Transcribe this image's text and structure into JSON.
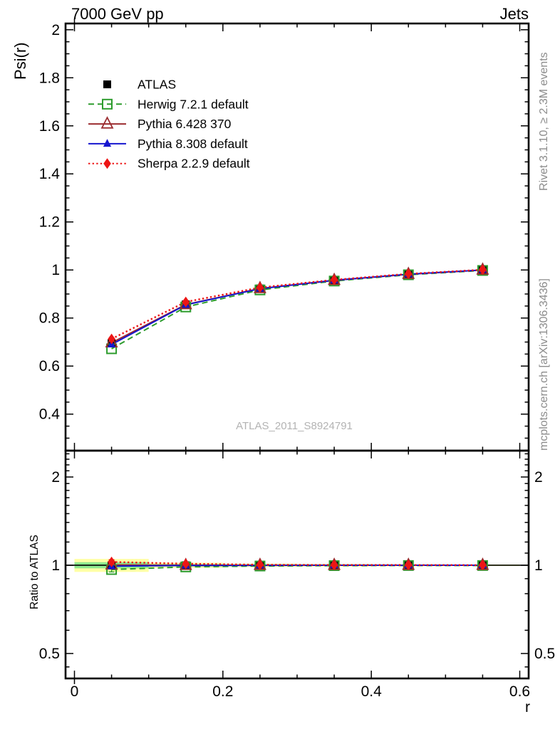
{
  "header": {
    "title_left": "7000 GeV pp",
    "title_right": "Jets"
  },
  "axis_labels": {
    "y_main": "Psi(r)",
    "y_ratio": "Ratio to ATLAS",
    "x": "r"
  },
  "side_notes": {
    "rivet": "Rivet 3.1.10, ≥ 2.3M events",
    "mcplots": "mcplots.cern.ch [arXiv:1306.3436]"
  },
  "watermark": "ATLAS_2011_S8924791",
  "chart_data": {
    "type": "line",
    "title": "7000 GeV pp",
    "corner_label": "Jets",
    "xlabel": "r",
    "ylabel": "Psi(r)",
    "ratio_label": "Ratio to ATLAS",
    "x": [
      0.05,
      0.15,
      0.25,
      0.35,
      0.45,
      0.55
    ],
    "xlim": [
      -0.012,
      0.612
    ],
    "ylim_main": [
      0.248,
      2.026
    ],
    "ylim_ratio": [
      0.411,
      2.46
    ],
    "ratio_scale": "log",
    "grid": false,
    "legend_position": "top-left",
    "x_ticks": {
      "major": [
        0,
        0.2,
        0.4,
        0.6
      ],
      "labels": [
        "0",
        "0.2",
        "0.4",
        "0.6"
      ],
      "minor_step": 0.05
    },
    "y_ticks_main": {
      "major": [
        0.4,
        0.6,
        0.8,
        1.0,
        1.2,
        1.4,
        1.6,
        1.8,
        2.0
      ],
      "labels": [
        "0.4",
        "0.6",
        "0.8",
        "1",
        "1.2",
        "1.4",
        "1.6",
        "1.8",
        "2"
      ],
      "minor_step": 0.05
    },
    "y_ticks_ratio": {
      "major": [
        0.5,
        1,
        2
      ],
      "labels": [
        "0.5",
        "1",
        "2"
      ],
      "minor": [
        0.45,
        0.6,
        0.7,
        0.8,
        0.9,
        1.1,
        1.2,
        1.3,
        1.4,
        1.5,
        1.6,
        1.7,
        1.8,
        1.9,
        2.1,
        2.2,
        2.3,
        2.4
      ]
    },
    "series": [
      {
        "name": "ATLAS",
        "color": "#000000",
        "marker": "square-filled",
        "line": "none",
        "values": [
          0.695,
          0.857,
          0.923,
          0.957,
          0.982,
          1.0
        ],
        "errors": [
          0.012,
          0.007,
          0.005,
          0.004,
          0.004,
          0.003
        ],
        "ratio": [
          1.0,
          1.0,
          1.0,
          1.0,
          1.0,
          1.0
        ]
      },
      {
        "name": "Herwig 7.2.1 default",
        "color": "#2d9c2d",
        "marker": "square-open",
        "line": "dashed",
        "values": [
          0.672,
          0.846,
          0.917,
          0.954,
          0.98,
          0.998
        ],
        "ratio": [
          0.967,
          0.987,
          0.994,
          0.997,
          0.998,
          0.998
        ]
      },
      {
        "name": "Pythia 6.428 370",
        "color": "#9b2d30",
        "marker": "triangle-open",
        "line": "solid",
        "values": [
          0.697,
          0.856,
          0.923,
          0.957,
          0.982,
          1.0
        ],
        "ratio": [
          1.003,
          0.999,
          1.0,
          1.0,
          1.0,
          1.0
        ]
      },
      {
        "name": "Pythia 8.308 default",
        "color": "#1515cf",
        "marker": "triangle-filled",
        "line": "solid",
        "values": [
          0.69,
          0.855,
          0.922,
          0.957,
          0.982,
          1.0
        ],
        "ratio": [
          0.993,
          0.998,
          0.999,
          1.0,
          1.0,
          1.0
        ]
      },
      {
        "name": "Sherpa 2.2.9 default",
        "color": "#ed1515",
        "marker": "diamond-filled",
        "line": "dotted",
        "values": [
          0.713,
          0.867,
          0.927,
          0.959,
          0.984,
          1.001
        ],
        "ratio": [
          1.026,
          1.012,
          1.004,
          1.002,
          1.002,
          1.001
        ]
      }
    ],
    "ratio_errors": [
      0.018,
      0.007,
      0.005,
      0.004,
      0.003,
      0.003
    ],
    "ratio_reference": 1.0,
    "uncertainty_bands": {
      "bin_edges": [
        0,
        0.1,
        0.2,
        0.3,
        0.4,
        0.5,
        0.6
      ],
      "yellow_half": [
        0.051,
        0.02,
        0.013,
        0.01,
        0.008,
        0.006
      ],
      "green_half": [
        0.024,
        0.009,
        0.006,
        0.005,
        0.004,
        0.003
      ],
      "yellow_color": "#ffffa6",
      "green_color": "#8ee88e"
    }
  }
}
